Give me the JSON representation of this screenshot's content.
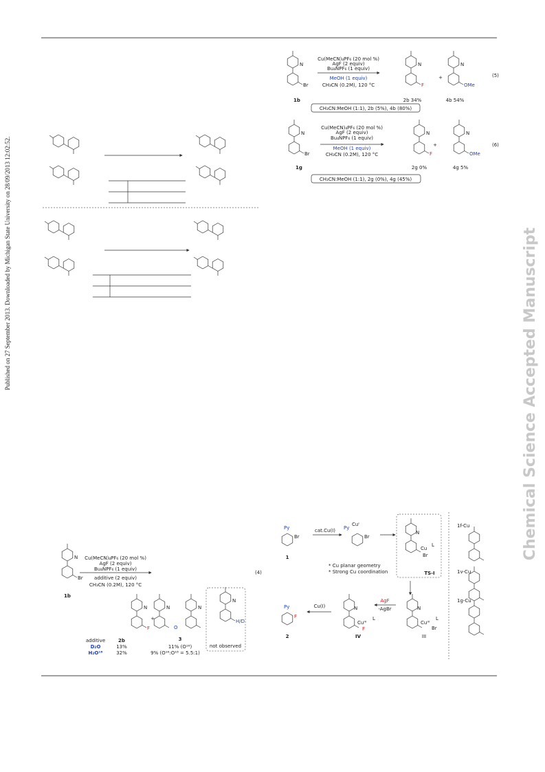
{
  "margin": {
    "published": "Published on 27 September 2013. Downloaded by Michigan State University on 28/09/2013 12:02:52.",
    "watermark": "Chemical Science Accepted Manuscript"
  },
  "eq5": {
    "number": "(5)",
    "substrate": "1b",
    "plus": "+",
    "conditions": [
      "Cu(MeCN)₄PF₆ (20 mol %)",
      "AgF (2 equiv)",
      "Bu₄NPF₆ (1 equiv)",
      "MeOH (1 equiv)",
      "CH₃CN (0.2M), 120 °C"
    ],
    "products": [
      "2b 34%",
      "4b 54%"
    ],
    "atoms": [
      "N",
      "Br",
      "N",
      "F",
      "N",
      "OMe"
    ],
    "note": "CH₃CN:MeOH (1:1), 2b (5%), 4b (80%)"
  },
  "eq6": {
    "number": "(6)",
    "substrate": "1g",
    "plus": "+",
    "conditions": [
      "Cu(MeCN)₄PF₆ (20 mol %)",
      "AgF (2 equiv)",
      "Bu₄NPF₆ (1 equiv)",
      "MeOH (1 equiv)",
      "CH₃CN (0.2M), 120 °C"
    ],
    "products": [
      "2g 0%",
      "4g 5%"
    ],
    "atoms": [
      "N",
      "Br",
      "N",
      "F",
      "N",
      "OMe"
    ],
    "note": "CH₃CN:MeOH (1:1), 2g (0%), 4g (45%)"
  },
  "eq4": {
    "number": "(4)",
    "substrate": "1b",
    "plus": "+",
    "conditions": [
      "Cu(MeCN)₄PF₆ (20 mol %)",
      "AgF (2 equiv)",
      "Bu₄NPF₆ (1 equiv)",
      "additive (2 equiv)",
      "CH₃CN (0.2M), 120 °C"
    ],
    "atoms": [
      "N",
      "Br",
      "N",
      "F",
      "O",
      "N",
      "N",
      "N",
      "H/D"
    ],
    "box": "not observed",
    "table": {
      "header": [
        "additive",
        "2b",
        "3"
      ],
      "rows": [
        [
          "D₂O",
          "13%",
          "11% (O¹⁶)"
        ],
        [
          "H₂O¹⁸",
          "32%",
          "9% (O¹⁶:O¹⁸ = 5.5:1)"
        ]
      ]
    }
  },
  "mechanism": {
    "start": "1",
    "catalyst": "cat.Cu(I)",
    "ts": "TS-I",
    "notes": [
      "* Cu planar geometry",
      "* Strong Cu coordination"
    ],
    "reagents": [
      "AgF",
      "-AgBr"
    ],
    "regen": "Cu(I)",
    "product": "2",
    "intermediates": [
      "III",
      "IV"
    ],
    "atoms": [
      "Py",
      "Br",
      "Py",
      "Cuᴵ",
      "Br",
      "N",
      "Cu",
      "L",
      "Br",
      "N",
      "Cuᴵᴵᴵ",
      "L",
      "Br",
      "N",
      "Cuᴵᴵᴵ",
      "L",
      "F",
      "Py",
      "F"
    ],
    "complexes": [
      "1f-Cu",
      "1v-Cu",
      "1g-Cu"
    ]
  }
}
